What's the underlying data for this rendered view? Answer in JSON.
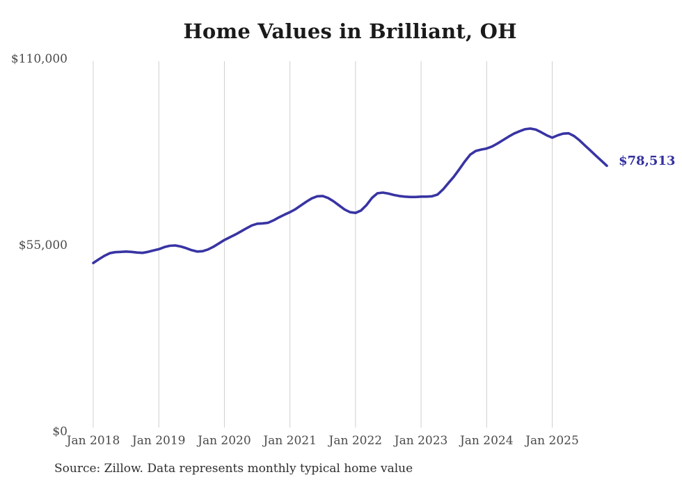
{
  "title": "Home Values in Brilliant, OH",
  "source_note": "Source: Zillow. Data represents monthly typical home value",
  "end_label": "$78,513",
  "colors": {
    "line": "#3834a3",
    "grid": "#cfcfcf",
    "tick_text": "#4a4a4a",
    "title_text": "#1a1a1a",
    "end_label_text": "#3330a0",
    "source_text": "#2e2e2e",
    "background": "#ffffff"
  },
  "chart_data": {
    "type": "line",
    "title": "Home Values in Brilliant, OH",
    "xlabel": "",
    "ylabel": "",
    "interval": "monthly",
    "x_start": "2018-01",
    "x_end": "2025-11",
    "x_tick_labels": [
      "Jan 2018",
      "Jan 2019",
      "Jan 2020",
      "Jan 2021",
      "Jan 2022",
      "Jan 2023",
      "Jan 2024",
      "Jan 2025"
    ],
    "y_ticks": [
      {
        "label": "$0",
        "value": 0
      },
      {
        "label": "$55,000",
        "value": 55000
      },
      {
        "label": "$110,000",
        "value": 110000
      }
    ],
    "ylim": [
      0,
      110000
    ],
    "grid": "vertical-only",
    "legend": "none",
    "series_name": "Typical home value",
    "final_value": 78513,
    "final_value_label": "$78,513",
    "values": [
      49800,
      50900,
      51900,
      52700,
      53000,
      53100,
      53200,
      53100,
      52900,
      52800,
      53100,
      53500,
      53900,
      54500,
      54900,
      55000,
      54700,
      54200,
      53600,
      53200,
      53300,
      53800,
      54600,
      55600,
      56600,
      57400,
      58200,
      59100,
      60000,
      60900,
      61400,
      61500,
      61700,
      62400,
      63300,
      64100,
      64800,
      65700,
      66800,
      67900,
      68900,
      69500,
      69600,
      69000,
      68000,
      66800,
      65600,
      64800,
      64600,
      65300,
      66900,
      69000,
      70400,
      70600,
      70300,
      69900,
      69600,
      69400,
      69300,
      69300,
      69400,
      69400,
      69500,
      70000,
      71500,
      73400,
      75300,
      77500,
      79800,
      81800,
      82900,
      83300,
      83600,
      84200,
      85100,
      86100,
      87100,
      88000,
      88700,
      89300,
      89500,
      89200,
      88400,
      87500,
      86800,
      87500,
      88000,
      88100,
      87300,
      86000,
      84500,
      83000,
      81500,
      80000,
      78513
    ]
  }
}
